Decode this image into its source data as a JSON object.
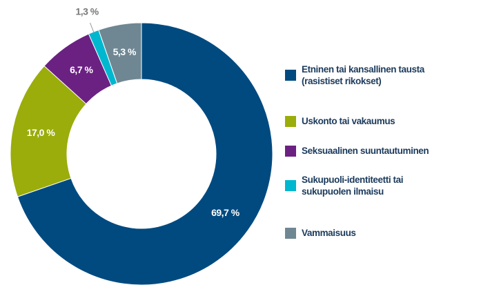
{
  "chart_data": {
    "type": "donut",
    "categories": [
      "Etninen tai kansallinen tausta (rasistiset rikokset)",
      "Uskonto tai vakaumus",
      "Seksuaalinen suuntautuminen",
      "Sukupuoli-identiteetti tai sukupuolen ilmaisu",
      "Vammaisuus"
    ],
    "values": [
      69.7,
      17.0,
      6.7,
      1.3,
      5.3
    ],
    "value_labels": [
      "69,7 %",
      "17,0 %",
      "6,7 %",
      "1,3 %",
      "5,3 %"
    ],
    "colors": [
      "#004a80",
      "#9aad0a",
      "#6b2182",
      "#00b7d0",
      "#6f8792"
    ],
    "legend": "right"
  }
}
